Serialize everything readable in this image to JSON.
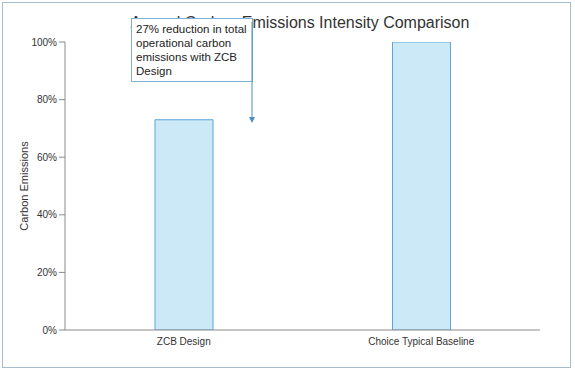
{
  "chart_data": {
    "type": "bar",
    "title": "Annual Carbon Emissions Intensity Comparison",
    "y_label": "Carbon Emissions",
    "categories": [
      "ZCB Design",
      "Choice Typical Baseline"
    ],
    "values": [
      73,
      100
    ],
    "color": "#cce9f7",
    "ylim": [
      0,
      100
    ],
    "yticks": [
      {
        "value": 0,
        "label": "0%"
      },
      {
        "value": 20,
        "label": "20%"
      },
      {
        "value": 40,
        "label": "40%"
      },
      {
        "value": 60,
        "label": "60%"
      },
      {
        "value": 80,
        "label": "80%"
      },
      {
        "value": 100,
        "label": "100%"
      }
    ],
    "grid": false,
    "annotations": [
      "27% reduction in total operational carbon emissions with ZCB Design"
    ]
  }
}
